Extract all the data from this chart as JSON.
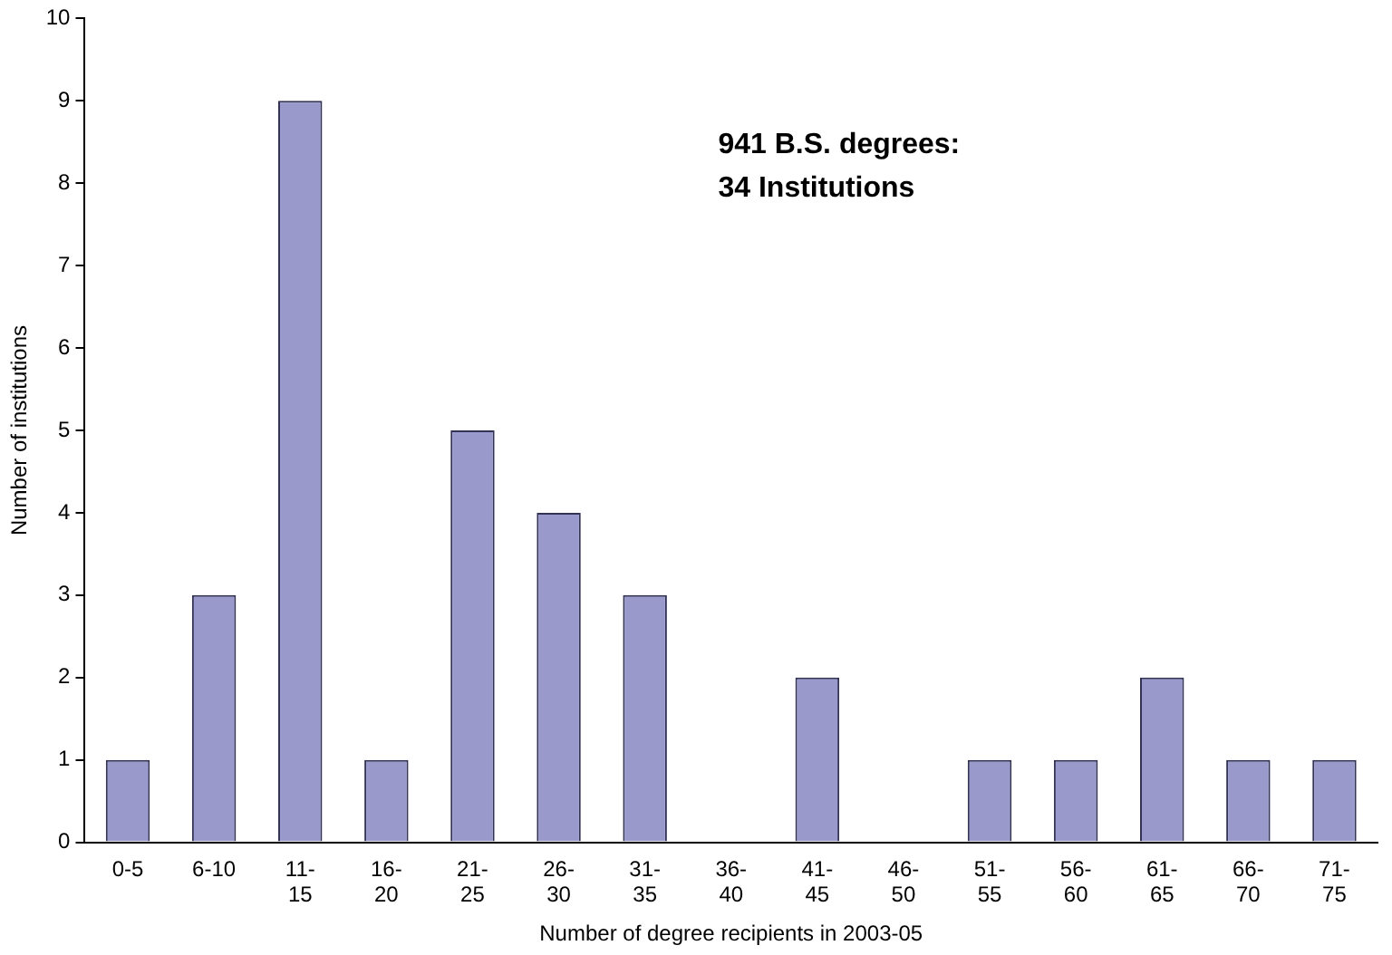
{
  "chart_data": {
    "type": "bar",
    "xlabel": "Number of degree recipients in 2003-05",
    "ylabel": "Number of institutions",
    "categories": [
      "0-5",
      "6-10",
      "11-15",
      "16-20",
      "21-25",
      "26-30",
      "31-35",
      "36-40",
      "41-45",
      "46-50",
      "51-55",
      "56-60",
      "61-65",
      "66-70",
      "71-75"
    ],
    "values": [
      1,
      3,
      9,
      1,
      5,
      4,
      3,
      0,
      2,
      0,
      1,
      1,
      2,
      1,
      1
    ],
    "color": "#9999cc",
    "ylim": [
      0,
      10
    ],
    "yticks": [
      0,
      1,
      2,
      3,
      4,
      5,
      6,
      7,
      8,
      9,
      10
    ],
    "grid": false,
    "legend": false,
    "annotations": [
      "941 B.S. degrees:",
      "34 Institutions"
    ]
  }
}
